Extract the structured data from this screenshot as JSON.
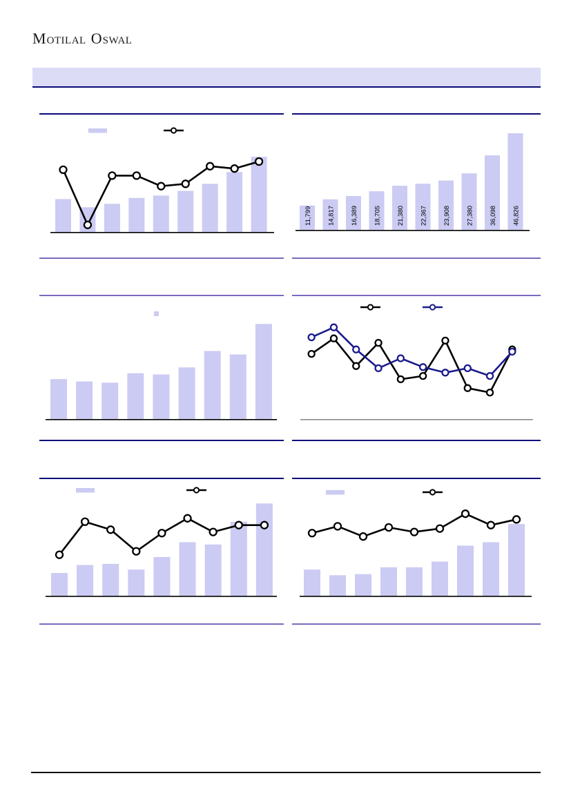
{
  "brand": {
    "logo_parts": {
      "m_cap": "M",
      "m_rest": "otilal",
      "o_cap": "O",
      "o_rest": "swal"
    }
  },
  "colors": {
    "banner_fill": "#DCDCF7",
    "navy_border": "#0A0A78",
    "purple_border": "#7C68BE",
    "bar_fill": "#CBCBF3",
    "line_black": "#000000",
    "line_navy": "#1A1A8C",
    "axis_gray": "#8C8C8C",
    "footer_line": "#000000"
  },
  "chart_data": [
    {
      "id": "exhibit-1",
      "row": 1,
      "col": "left",
      "type": "bar+line",
      "legend": [
        "bar-swatch",
        "black-line-swatch"
      ],
      "bars": {
        "color": "#CBCBF3",
        "unit": "pct_of_plot",
        "values": [
          28,
          21,
          24,
          29,
          31,
          35,
          41,
          51,
          64
        ]
      },
      "line": {
        "color": "#000000",
        "marker": "open-circle",
        "unit": "pct_of_plot",
        "values": [
          53,
          6,
          48,
          48,
          39,
          41,
          56,
          54,
          60
        ]
      }
    },
    {
      "id": "exhibit-2",
      "row": 1,
      "col": "right",
      "type": "bar",
      "bars": {
        "color": "#CBCBF3",
        "values": [
          11799,
          14817,
          16389,
          18705,
          21380,
          22367,
          23908,
          27380,
          36098,
          46826
        ],
        "labels": [
          "11,799",
          "14,817",
          "16,389",
          "18,705",
          "21,380",
          "22,367",
          "23,908",
          "27,380",
          "36,098",
          "46,826"
        ],
        "label_rotation_deg": -90,
        "label_color": "#000000"
      }
    },
    {
      "id": "exhibit-3",
      "row": 2,
      "col": "left",
      "type": "bar",
      "legend": [
        "bar-swatch-small"
      ],
      "bars": {
        "color": "#CBCBF3",
        "unit": "pct_of_plot",
        "values": [
          34,
          32,
          31,
          39,
          38,
          44,
          58,
          55,
          81
        ]
      }
    },
    {
      "id": "exhibit-4",
      "row": 2,
      "col": "right",
      "type": "line",
      "legend": [
        "black-line-swatch",
        "navy-line-swatch"
      ],
      "axis_color": "#8C8C8C",
      "series": [
        {
          "name": "black",
          "color": "#000000",
          "marker": "open-circle",
          "unit": "pct_of_plot",
          "values": [
            59,
            73,
            48,
            69,
            36,
            39,
            71,
            28,
            24,
            63
          ]
        },
        {
          "name": "navy",
          "color": "#1A1A8C",
          "marker": "open-circle",
          "unit": "pct_of_plot",
          "values": [
            74,
            83,
            63,
            46,
            55,
            47,
            42,
            46,
            39,
            61
          ]
        }
      ]
    },
    {
      "id": "exhibit-5",
      "row": 3,
      "col": "left",
      "type": "bar+line",
      "legend": [
        "bar-swatch",
        "black-line-swatch"
      ],
      "bars": {
        "color": "#CBCBF3",
        "unit": "pct_of_plot",
        "values": [
          20,
          27,
          28,
          23,
          34,
          47,
          45,
          65,
          81
        ]
      },
      "line": {
        "color": "#000000",
        "marker": "open-circle",
        "unit": "pct_of_plot",
        "values": [
          36,
          65,
          58,
          39,
          55,
          68,
          56,
          62,
          62
        ]
      }
    },
    {
      "id": "exhibit-6",
      "row": 3,
      "col": "right",
      "type": "bar+line",
      "legend": [
        "bar-swatch",
        "black-line-swatch"
      ],
      "bars": {
        "color": "#CBCBF3",
        "unit": "pct_of_plot",
        "values": [
          23,
          18,
          19,
          25,
          25,
          30,
          44,
          47,
          63
        ]
      },
      "line": {
        "color": "#000000",
        "marker": "open-circle",
        "unit": "pct_of_plot",
        "values": [
          55,
          61,
          52,
          60,
          56,
          59,
          72,
          62,
          67
        ]
      }
    }
  ]
}
